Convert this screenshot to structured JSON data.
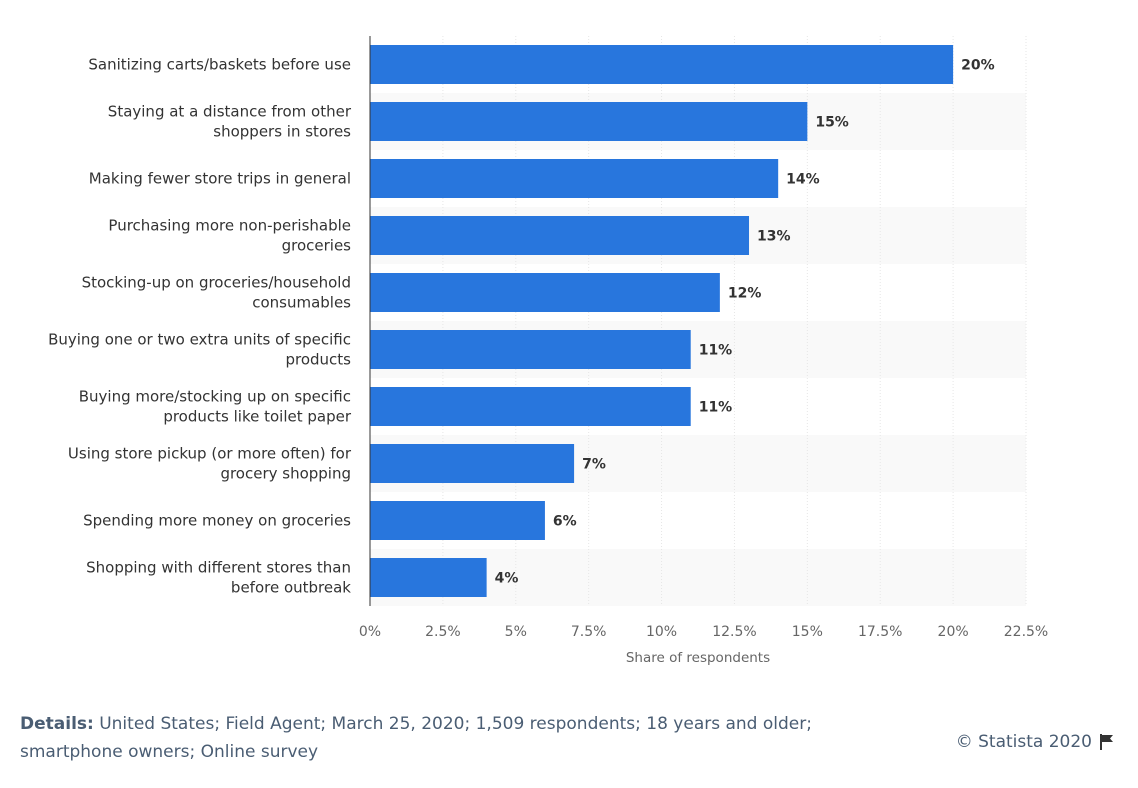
{
  "chart_data": {
    "type": "bar",
    "orientation": "horizontal",
    "categories": [
      [
        "Sanitizing carts/baskets before use"
      ],
      [
        "Staying at a distance from other",
        "shoppers in stores"
      ],
      [
        "Making fewer store trips in general"
      ],
      [
        "Purchasing more non-perishable",
        "groceries"
      ],
      [
        "Stocking-up on groceries/household",
        "consumables"
      ],
      [
        "Buying one or two extra units of specific",
        "products"
      ],
      [
        "Buying more/stocking up on specific",
        "products like toilet paper"
      ],
      [
        "Using store pickup (or more often) for",
        "grocery shopping"
      ],
      [
        "Spending more money on groceries"
      ],
      [
        "Shopping with different stores than",
        "before outbreak"
      ]
    ],
    "values": [
      20,
      15,
      14,
      13,
      12,
      11,
      11,
      7,
      6,
      4
    ],
    "value_labels": [
      "20%",
      "15%",
      "14%",
      "13%",
      "12%",
      "11%",
      "11%",
      "7%",
      "6%",
      "4%"
    ],
    "xlabel": "Share of respondents",
    "xlim": [
      0,
      22.5
    ],
    "xticks": [
      0,
      2.5,
      5,
      7.5,
      10,
      12.5,
      15,
      17.5,
      20,
      22.5
    ],
    "xtick_labels": [
      "0%",
      "2.5%",
      "5%",
      "7.5%",
      "10%",
      "12.5%",
      "15%",
      "17.5%",
      "20%",
      "22.5%"
    ],
    "grid": "vertical",
    "bar_color": "#2876dd",
    "band_color": "#f9f9f9"
  },
  "footer": {
    "details_label": "Details:",
    "details_text": " United States; Field Agent; March 25, 2020; 1,509 respondents; 18 years and older; smartphone owners; Online survey",
    "credit": "© Statista 2020"
  }
}
